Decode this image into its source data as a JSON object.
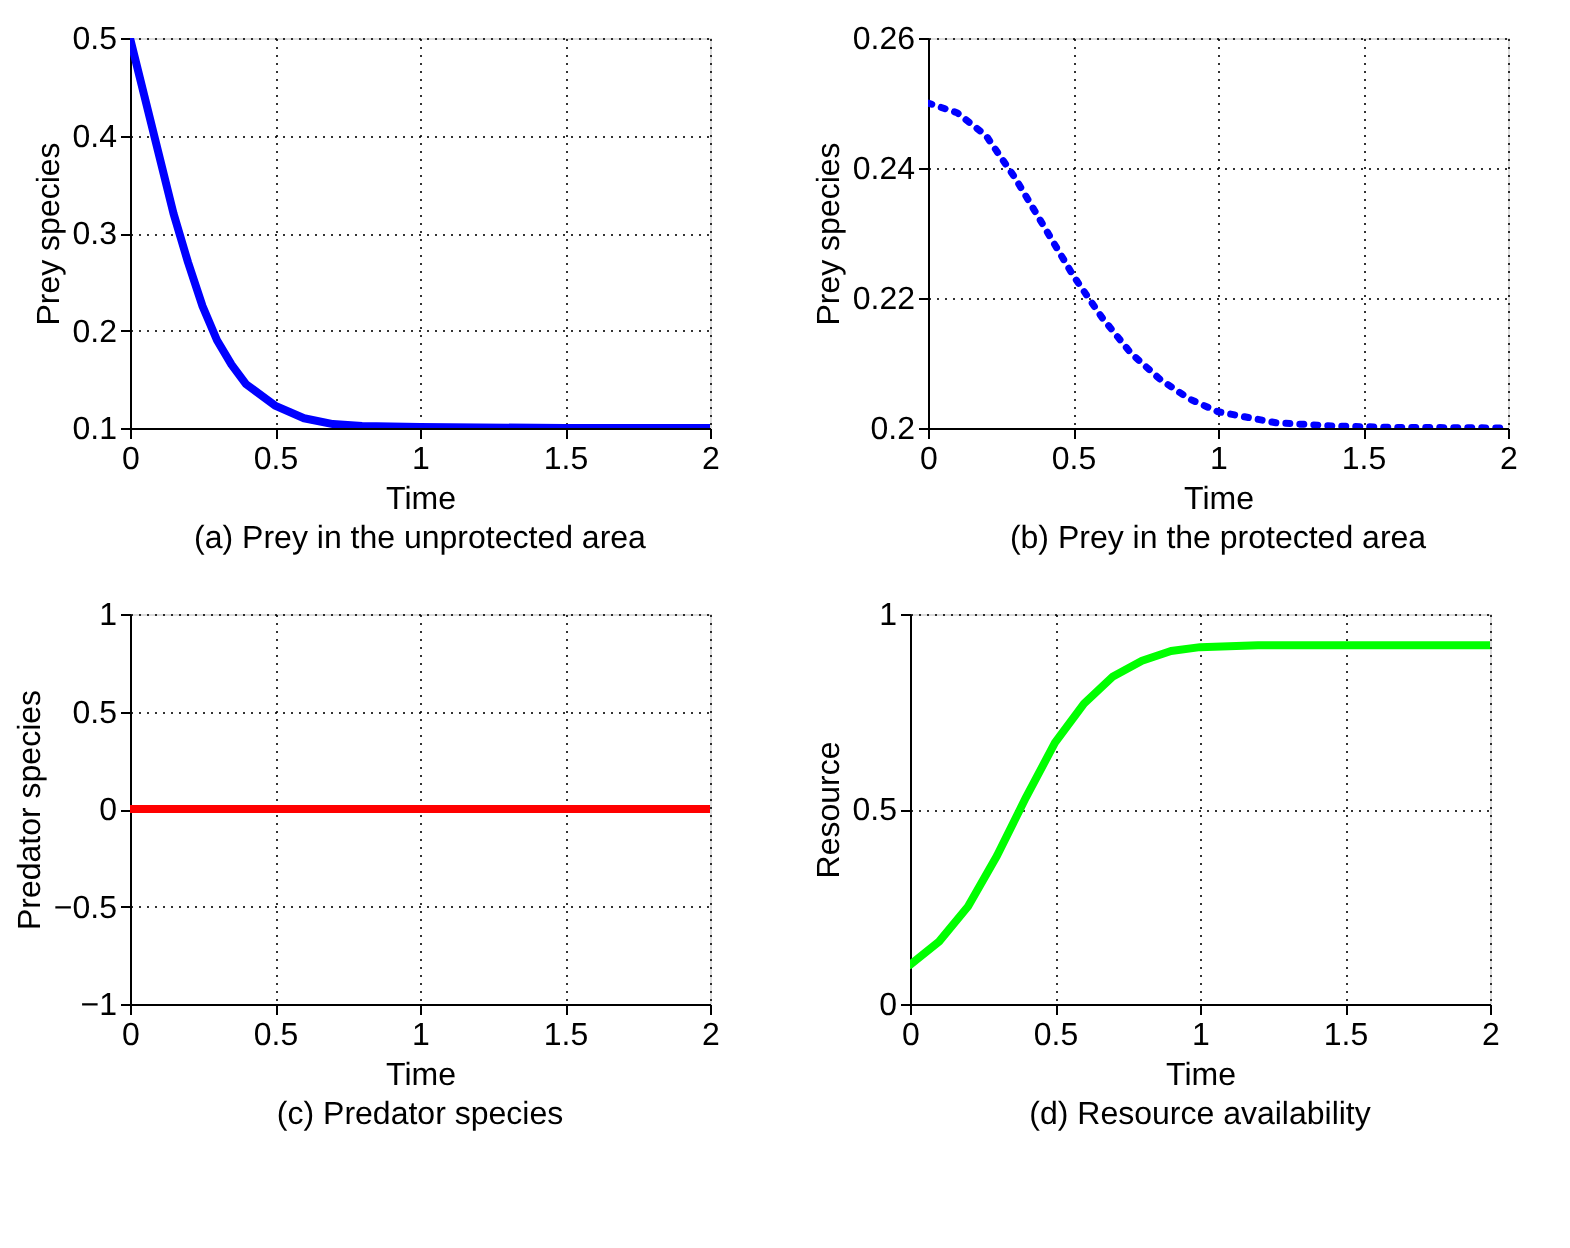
{
  "chart_data": [
    {
      "type": "line",
      "title": "(a) Prey in the unprotected area",
      "xlabel": "Time",
      "ylabel": "Prey species",
      "x": [
        0,
        0.05,
        0.1,
        0.15,
        0.2,
        0.25,
        0.3,
        0.35,
        0.4,
        0.5,
        0.6,
        0.7,
        0.8,
        1,
        1.5,
        2
      ],
      "series": [
        {
          "color": "#0000ff",
          "values": [
            0.5,
            0.44,
            0.38,
            0.32,
            0.27,
            0.225,
            0.19,
            0.165,
            0.145,
            0.123,
            0.11,
            0.104,
            0.102,
            0.101,
            0.1,
            0.1
          ]
        }
      ],
      "xlim": [
        0,
        2
      ],
      "xticks": [
        0,
        0.5,
        1,
        1.5,
        2
      ],
      "ylim": [
        0.1,
        0.5
      ],
      "yticks": [
        0.1,
        0.2,
        0.3,
        0.4,
        0.5
      ],
      "grid": true,
      "line_style": "solid"
    },
    {
      "type": "line",
      "title": "(b) Prey in the protected area",
      "xlabel": "Time",
      "ylabel": "Prey species",
      "x": [
        0,
        0.1,
        0.2,
        0.3,
        0.4,
        0.5,
        0.6,
        0.7,
        0.8,
        0.9,
        1,
        1.2,
        1.4,
        1.6,
        2
      ],
      "series": [
        {
          "color": "#0000ff",
          "values": [
            0.25,
            0.2485,
            0.245,
            0.2385,
            0.231,
            0.2235,
            0.217,
            0.2115,
            0.2075,
            0.2045,
            0.2025,
            0.2008,
            0.2003,
            0.2001,
            0.2
          ]
        }
      ],
      "xlim": [
        0,
        2
      ],
      "xticks": [
        0,
        0.5,
        1,
        1.5,
        2
      ],
      "ylim": [
        0.2,
        0.26
      ],
      "yticks": [
        0.2,
        0.22,
        0.24,
        0.26
      ],
      "grid": true,
      "line_style": "dotted"
    },
    {
      "type": "line",
      "title": "(c) Predator species",
      "xlabel": "Time",
      "ylabel": "Predator species",
      "x": [
        0,
        2
      ],
      "series": [
        {
          "color": "#ff0000",
          "values": [
            0,
            0
          ]
        }
      ],
      "xlim": [
        0,
        2
      ],
      "xticks": [
        0,
        0.5,
        1,
        1.5,
        2
      ],
      "ylim": [
        -1,
        1
      ],
      "yticks": [
        {
          "value": -1,
          "label": "−1"
        },
        -0.5,
        0,
        0.5,
        1
      ],
      "grid": true,
      "line_style": "solid"
    },
    {
      "type": "line",
      "title": "(d) Resource availability",
      "xlabel": "Time",
      "ylabel": "Resource",
      "x": [
        0,
        0.1,
        0.2,
        0.3,
        0.4,
        0.5,
        0.6,
        0.7,
        0.8,
        0.9,
        1,
        1.2,
        2
      ],
      "series": [
        {
          "color": "#00ff00",
          "values": [
            0.1,
            0.16,
            0.25,
            0.38,
            0.53,
            0.67,
            0.77,
            0.84,
            0.88,
            0.905,
            0.915,
            0.92,
            0.92
          ]
        }
      ],
      "xlim": [
        0,
        2
      ],
      "xticks": [
        0,
        0.5,
        1,
        1.5,
        2
      ],
      "ylim": [
        0,
        1
      ],
      "yticks": [
        0,
        0.5,
        1
      ],
      "grid": true,
      "line_style": "solid"
    }
  ]
}
